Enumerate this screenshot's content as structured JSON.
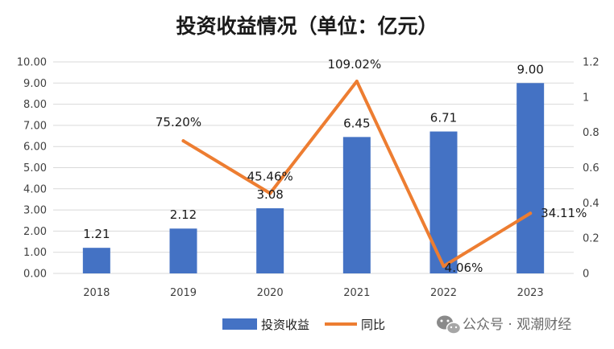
{
  "chart_data": {
    "type": "bar+line",
    "title": "投资收益情况（单位：亿元）",
    "categories": [
      "2018",
      "2019",
      "2020",
      "2021",
      "2022",
      "2023"
    ],
    "series": [
      {
        "name": "投资收益",
        "type": "bar",
        "axis": "left",
        "values": [
          1.21,
          2.12,
          3.08,
          6.45,
          6.71,
          9.0
        ],
        "labels": [
          "1.21",
          "2.12",
          "3.08",
          "6.45",
          "6.71",
          "9.00"
        ],
        "color": "#4472C4"
      },
      {
        "name": "同比",
        "type": "line",
        "axis": "right",
        "values": [
          null,
          0.752,
          0.4546,
          1.0902,
          0.0406,
          0.3411
        ],
        "labels": [
          "",
          "75.20%",
          "45.46%",
          "109.02%",
          "4.06%",
          "34.11%"
        ],
        "color": "#ED7D31"
      }
    ],
    "y_left": {
      "ylim": [
        0,
        10
      ],
      "ticks": [
        "0.00",
        "1.00",
        "2.00",
        "3.00",
        "4.00",
        "5.00",
        "6.00",
        "7.00",
        "8.00",
        "9.00",
        "10.00"
      ]
    },
    "y_right": {
      "ylim": [
        0,
        1.2
      ],
      "ticks": [
        "0",
        "0.2",
        "0.4",
        "0.6",
        "0.8",
        "1",
        "1.2"
      ]
    },
    "grid": true,
    "legend_position": "bottom"
  },
  "watermark": {
    "text": "公众号 · 观潮财经",
    "icon": "wechat-icon"
  }
}
